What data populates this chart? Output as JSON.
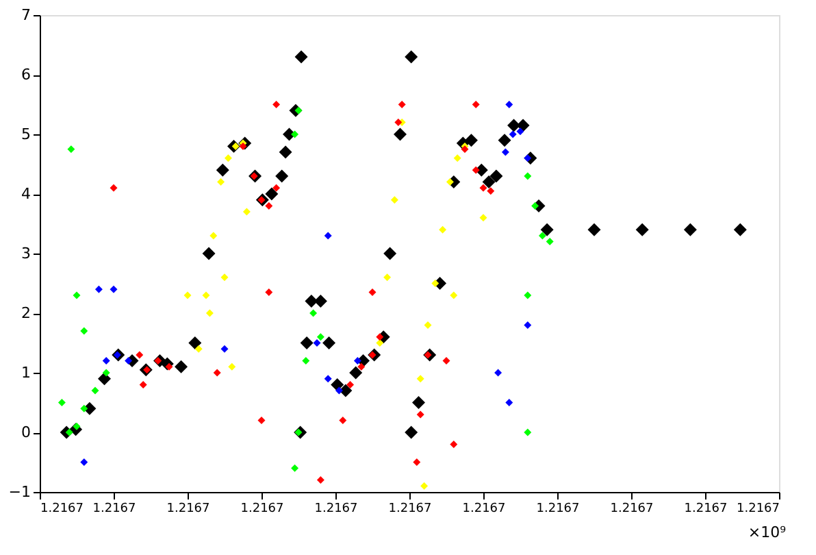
{
  "chart_data": {
    "type": "scatter",
    "marker": "diamond",
    "grid": false,
    "xlim": [
      1.21666,
      1.21674
    ],
    "xticks": [
      {
        "value": 1.21666,
        "label": "1.2167"
      },
      {
        "value": 1.216668,
        "label": "1.2167"
      },
      {
        "value": 1.216676,
        "label": "1.2167"
      },
      {
        "value": 1.216684,
        "label": "1.2167"
      },
      {
        "value": 1.216692,
        "label": "1.2167"
      },
      {
        "value": 1.2167,
        "label": "1.2167"
      },
      {
        "value": 1.216708,
        "label": "1.2167"
      },
      {
        "value": 1.216716,
        "label": "1.2167"
      },
      {
        "value": 1.216724,
        "label": "1.2167"
      },
      {
        "value": 1.216732,
        "label": "1.2167"
      },
      {
        "value": 1.21674,
        "label": "1.2167"
      }
    ],
    "ylim": [
      -1,
      7
    ],
    "yticks": [
      -1,
      0,
      1,
      2,
      3,
      4,
      5,
      6,
      7
    ],
    "annotations": [
      "×10⁹"
    ],
    "series": [
      {
        "color": "#000000",
        "x": [
          1.2166629,
          1.2166639,
          1.2166654,
          1.216667,
          1.2166685,
          1.21667,
          1.2166715,
          1.216673,
          1.2166738,
          1.2166753,
          1.2166768,
          1.2166783,
          1.2166798,
          1.216681,
          1.2166822,
          1.2166833,
          1.2166841,
          1.2166851,
          1.2166862,
          1.2166866,
          1.216687,
          1.2166877,
          1.2166883,
          1.2166882,
          1.2166889,
          1.2166894,
          1.2166904,
          1.2166913,
          1.2166922,
          1.2166931,
          1.2166942,
          1.216695,
          1.2166962,
          1.2166972,
          1.2166979,
          1.216699,
          1.2167002,
          1.2167002,
          1.216701,
          1.2167022,
          1.2167033,
          1.2167048,
          1.2167058,
          1.2167067,
          1.2167078,
          1.2167086,
          1.2167094,
          1.2167103,
          1.2167113,
          1.2167123,
          1.2167131,
          1.216714,
          1.2167149,
          1.21672,
          1.2167252,
          1.2167304,
          1.2167358
        ],
        "values": [
          0,
          0.05,
          0.4,
          0.9,
          1.3,
          1.2,
          1.05,
          1.2,
          1.15,
          1.1,
          1.5,
          3.0,
          4.4,
          4.8,
          4.85,
          4.3,
          3.9,
          4.0,
          4.3,
          4.7,
          5.0,
          5.4,
          6.3,
          0,
          1.5,
          2.2,
          2.2,
          1.5,
          0.8,
          0.7,
          1.0,
          1.2,
          1.3,
          1.6,
          3.0,
          5.0,
          6.3,
          0,
          0.5,
          1.3,
          2.5,
          4.2,
          4.85,
          4.9,
          4.4,
          4.2,
          4.3,
          4.9,
          5.15,
          5.15,
          4.6,
          3.8,
          3.4,
          3.4,
          3.4,
          3.4,
          3.4
        ]
      },
      {
        "color": "#ffff00",
        "x": [
          1.2166772,
          1.216678,
          1.2166788,
          1.2166796,
          1.2166804,
          1.2166812,
          1.216682,
          1.2166968,
          1.2166976,
          1.2166984,
          1.2166992,
          1.2167012,
          1.216702,
          1.2167028,
          1.2167036,
          1.2167044,
          1.2167052,
          1.216706,
          1.216676,
          1.2166784,
          1.21668,
          1.2166808,
          1.2166824,
          1.2167016,
          1.2167048,
          1.216708
        ],
        "values": [
          1.4,
          2.3,
          3.3,
          4.2,
          4.6,
          4.8,
          4.85,
          1.5,
          2.6,
          3.9,
          5.2,
          0.9,
          1.8,
          2.5,
          3.4,
          4.2,
          4.6,
          4.8,
          2.3,
          2.0,
          2.6,
          1.1,
          3.7,
          -0.9,
          2.3,
          3.6
        ]
      },
      {
        "color": "#ff0000",
        "x": [
          1.2166716,
          1.2166728,
          1.216674,
          1.216682,
          1.2166832,
          1.216684,
          1.2166848,
          1.2166856,
          1.2166936,
          1.2166948,
          1.216696,
          1.2166968,
          1.2166988,
          1.2166992,
          1.2167008,
          1.2167012,
          1.216702,
          1.216706,
          1.2167072,
          1.216708,
          1.2167088,
          1.216668,
          1.2166708,
          1.2166712,
          1.2166792,
          1.2166856,
          1.216684,
          1.2166904,
          1.2166928,
          1.216696,
          1.216704,
          1.2167072,
          1.2166848,
          1.2167048
        ],
        "values": [
          1.05,
          1.2,
          1.1,
          4.8,
          4.3,
          3.9,
          3.8,
          4.1,
          0.8,
          1.1,
          1.3,
          1.6,
          5.2,
          5.5,
          -0.5,
          0.3,
          1.3,
          4.75,
          4.4,
          4.1,
          4.05,
          4.1,
          1.3,
          0.8,
          1.0,
          5.5,
          0.2,
          -0.8,
          0.2,
          2.35,
          1.2,
          5.5,
          2.35,
          -0.2
        ]
      },
      {
        "color": "#0000ff",
        "x": [
          1.2166672,
          1.2166684,
          1.2166696,
          1.21669,
          1.2166912,
          1.2166924,
          1.2167104,
          1.2167112,
          1.216712,
          1.2167128,
          1.2166648,
          1.216668,
          1.2166664,
          1.2166912,
          1.2167108,
          1.2167128,
          1.2167096,
          1.2167108,
          1.21668,
          1.2166944
        ],
        "values": [
          1.2,
          1.3,
          1.2,
          1.5,
          0.9,
          0.7,
          4.7,
          5.0,
          5.05,
          4.6,
          -0.5,
          2.4,
          2.4,
          3.3,
          5.5,
          1.8,
          1.0,
          0.5,
          1.4,
          1.2
        ]
      },
      {
        "color": "#00ff00",
        "x": [
          1.2166632,
          1.216664,
          1.2166648,
          1.216666,
          1.2166672,
          1.216688,
          1.2166888,
          1.2166896,
          1.2166904,
          1.2166876,
          1.216688,
          1.2167128,
          1.2167136,
          1.2167144,
          1.2167152,
          1.2166634,
          1.216664,
          1.2166648,
          1.2166876,
          1.2167128,
          1.2167128,
          1.2166624
        ],
        "values": [
          0.0,
          0.1,
          0.4,
          0.7,
          1.0,
          0.0,
          1.2,
          2.0,
          1.6,
          5.0,
          5.4,
          4.3,
          3.8,
          3.3,
          3.2,
          4.75,
          2.3,
          1.7,
          -0.6,
          2.3,
          0.0,
          0.5
        ]
      }
    ]
  }
}
